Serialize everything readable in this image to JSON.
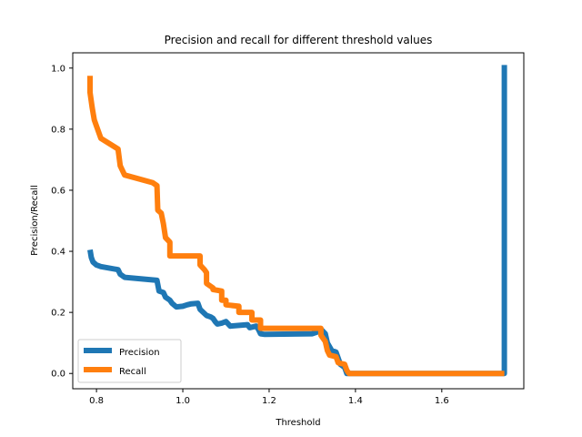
{
  "chart_data": {
    "type": "line",
    "title": "Precision and recall for different threshold values",
    "xlabel": "Threshold",
    "ylabel": "Precision/Recall",
    "xlim": [
      0.745,
      1.79
    ],
    "ylim": [
      -0.05,
      1.05
    ],
    "xticks": [
      0.8,
      1.0,
      1.2,
      1.4,
      1.6
    ],
    "xtick_labels": [
      "0.8",
      "1.0",
      "1.2",
      "1.4",
      "1.6"
    ],
    "yticks": [
      0.0,
      0.2,
      0.4,
      0.6,
      0.8,
      1.0
    ],
    "ytick_labels": [
      "0.0",
      "0.2",
      "0.4",
      "0.6",
      "0.8",
      "1.0"
    ],
    "grid": false,
    "legend_position": "lower-left",
    "series": [
      {
        "name": "Precision",
        "color": "#1f77b4",
        "x": [
          0.785,
          0.788,
          0.792,
          0.8,
          0.81,
          0.85,
          0.855,
          0.865,
          0.94,
          0.945,
          0.955,
          0.96,
          0.97,
          0.975,
          0.985,
          1.0,
          1.01,
          1.02,
          1.035,
          1.04,
          1.055,
          1.065,
          1.07,
          1.075,
          1.08,
          1.09,
          1.1,
          1.11,
          1.15,
          1.155,
          1.17,
          1.175,
          1.18,
          1.19,
          1.3,
          1.31,
          1.32,
          1.33,
          1.335,
          1.345,
          1.355,
          1.36,
          1.365,
          1.375,
          1.38,
          1.74,
          1.745,
          1.745
        ],
        "y": [
          0.405,
          0.38,
          0.365,
          0.355,
          0.35,
          0.34,
          0.325,
          0.315,
          0.305,
          0.27,
          0.265,
          0.25,
          0.24,
          0.23,
          0.218,
          0.22,
          0.225,
          0.228,
          0.23,
          0.21,
          0.19,
          0.185,
          0.18,
          0.17,
          0.162,
          0.165,
          0.17,
          0.155,
          0.16,
          0.15,
          0.155,
          0.145,
          0.13,
          0.128,
          0.13,
          0.135,
          0.145,
          0.13,
          0.1,
          0.075,
          0.07,
          0.05,
          0.03,
          0.02,
          0.0,
          0.0,
          0.0,
          1.01
        ]
      },
      {
        "name": "Recall",
        "color": "#ff7f0e",
        "x": [
          0.785,
          0.785,
          0.79,
          0.795,
          0.8,
          0.81,
          0.85,
          0.855,
          0.865,
          0.93,
          0.94,
          0.942,
          0.95,
          0.955,
          0.96,
          0.97,
          0.97,
          1.04,
          1.04,
          1.05,
          1.055,
          1.055,
          1.07,
          1.07,
          1.09,
          1.09,
          1.1,
          1.1,
          1.13,
          1.13,
          1.16,
          1.16,
          1.18,
          1.18,
          1.32,
          1.32,
          1.33,
          1.335,
          1.34,
          1.355,
          1.36,
          1.375,
          1.38,
          1.385,
          1.745
        ],
        "y": [
          0.975,
          0.92,
          0.87,
          0.83,
          0.81,
          0.77,
          0.735,
          0.68,
          0.65,
          0.625,
          0.615,
          0.535,
          0.525,
          0.49,
          0.445,
          0.43,
          0.385,
          0.385,
          0.355,
          0.34,
          0.33,
          0.295,
          0.28,
          0.275,
          0.27,
          0.24,
          0.24,
          0.225,
          0.22,
          0.2,
          0.2,
          0.175,
          0.175,
          0.148,
          0.148,
          0.125,
          0.105,
          0.075,
          0.06,
          0.055,
          0.035,
          0.03,
          0.01,
          0.0,
          0.0
        ]
      }
    ]
  }
}
